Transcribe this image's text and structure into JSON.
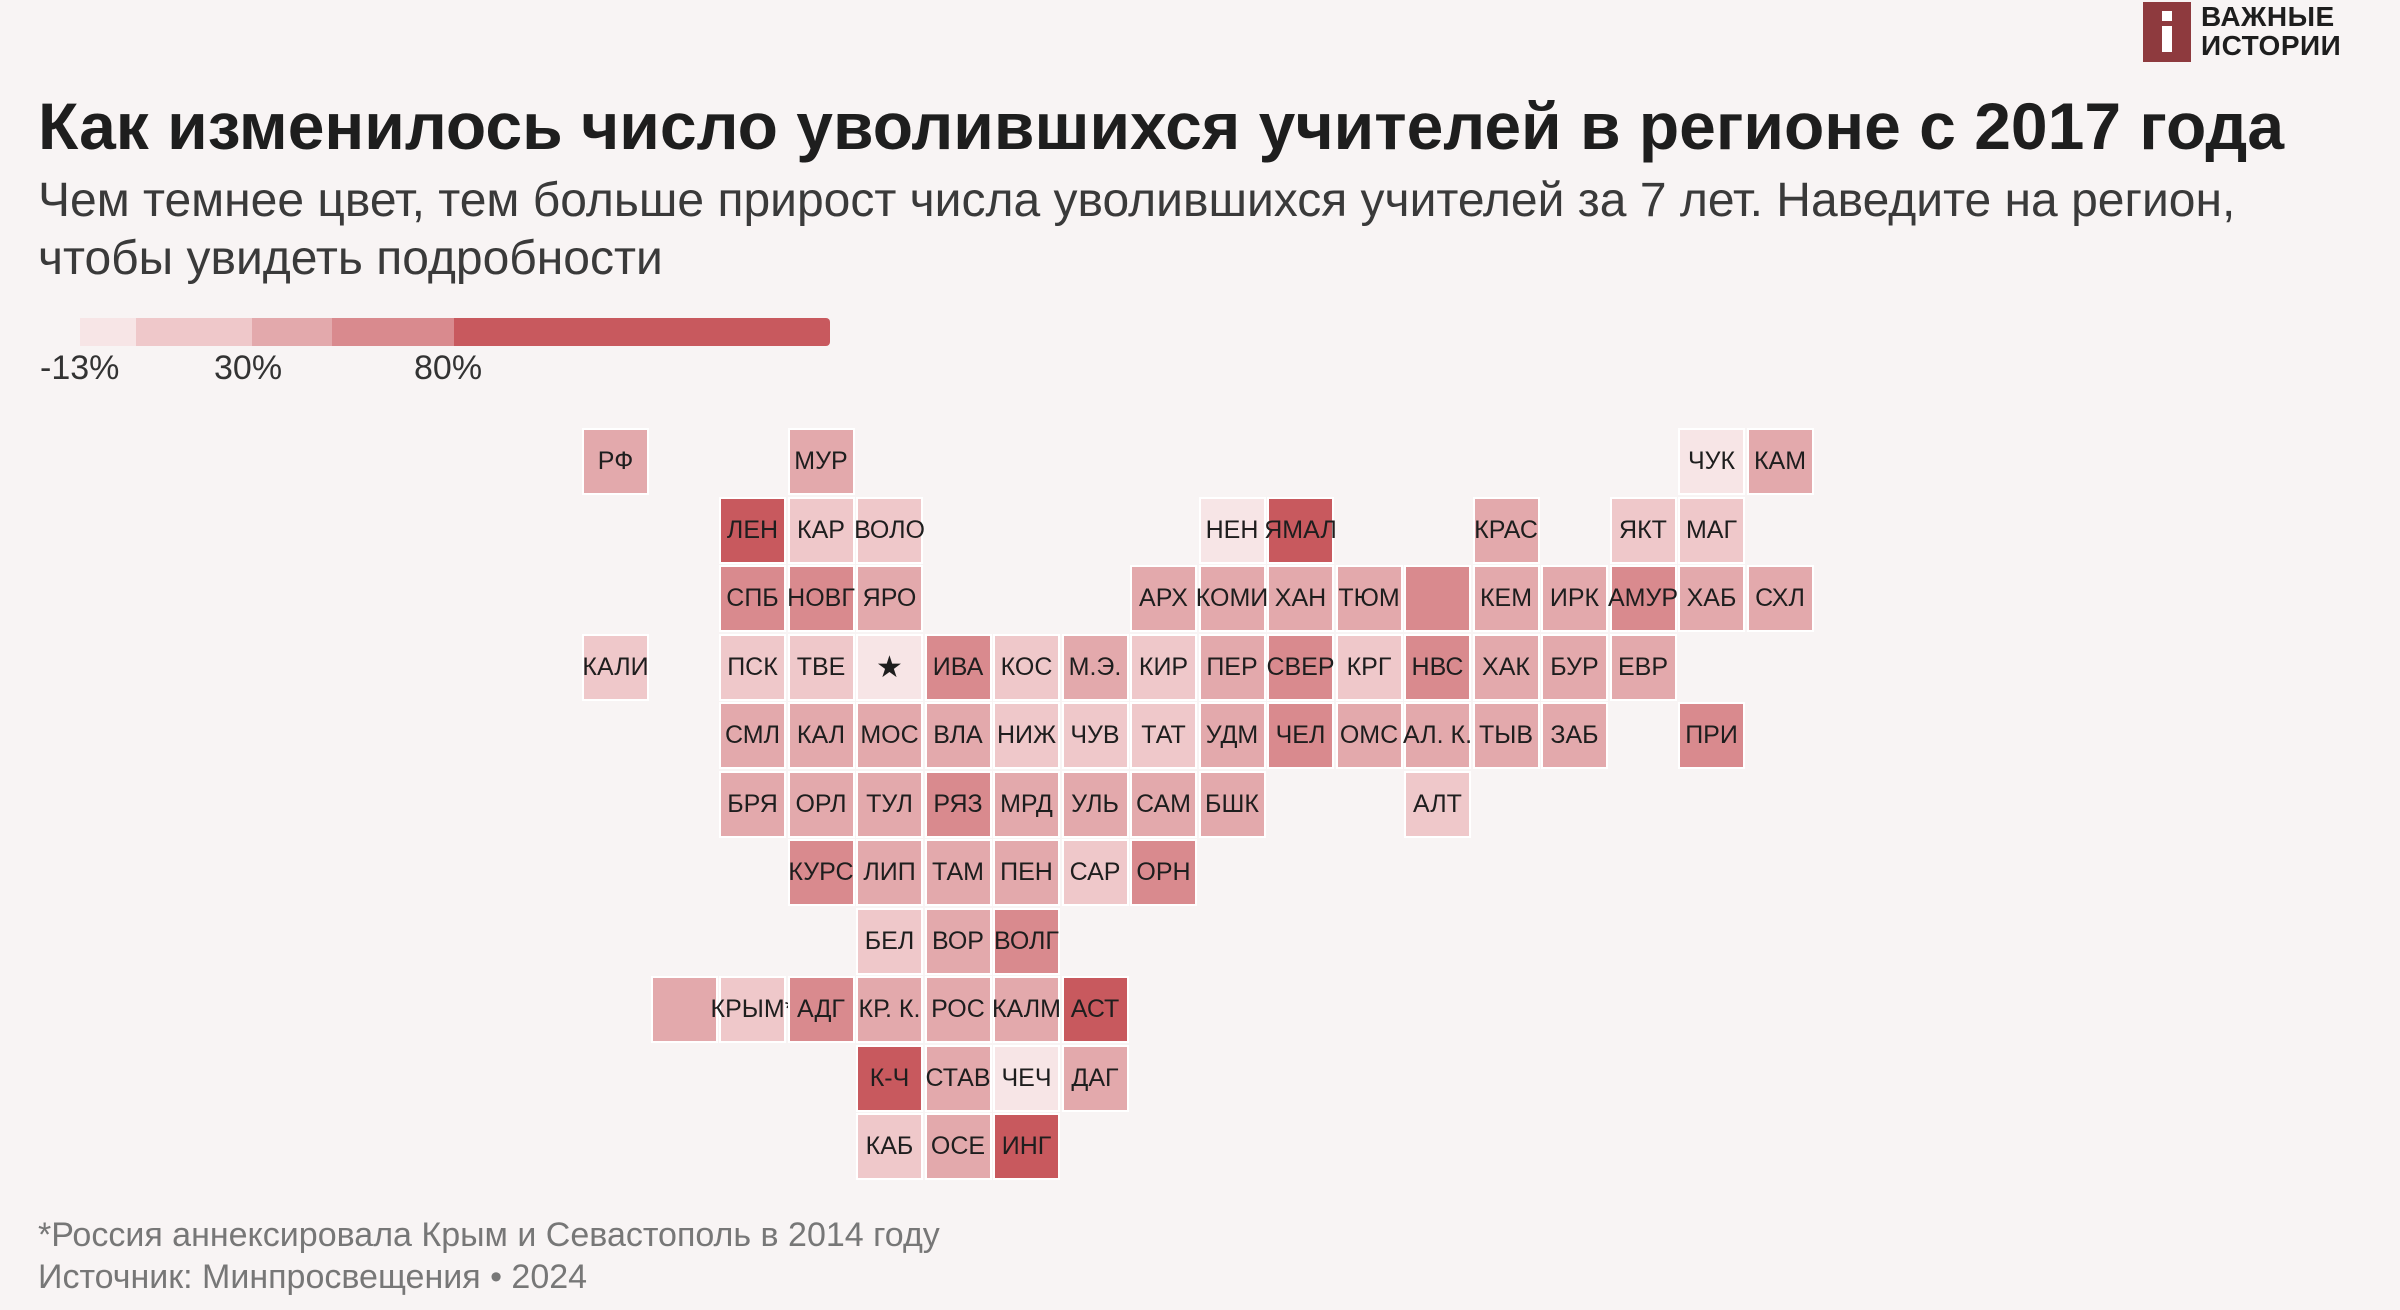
{
  "logo": {
    "line1": "ВАЖНЫЕ",
    "line2": "ИСТОРИИ",
    "color": "#8e3a3e"
  },
  "title": "Как изменилось число уволившихся учителей в регионе с 2017 года",
  "subtitle": "Чем темнее цвет, тем больше прирост числа уволившихся учителей за 7 лет. Наведите на регион, чтобы увидеть подробности",
  "legend": {
    "labels": [
      "-13%",
      "30%",
      "80%"
    ],
    "colors": [
      "#f7e5e6",
      "#efc8ca",
      "#e3a9ac",
      "#d98a8e",
      "#c8595e"
    ]
  },
  "chart_data": {
    "type": "heatmap",
    "description_of_scale": "darker = larger growth of teachers leaving",
    "levels": [
      {
        "level": 1,
        "color": "#f7e5e6"
      },
      {
        "level": 2,
        "color": "#efc8ca"
      },
      {
        "level": 3,
        "color": "#e3a9ac"
      },
      {
        "level": 4,
        "color": "#d98a8e"
      },
      {
        "level": 5,
        "color": "#c8595e"
      }
    ],
    "regions": [
      {
        "label": "РФ",
        "col": 0,
        "row": 0,
        "level": 3
      },
      {
        "label": "МУР",
        "col": 3,
        "row": 0,
        "level": 3
      },
      {
        "label": "ЧУК",
        "col": 16,
        "row": 0,
        "level": 1
      },
      {
        "label": "КАМ",
        "col": 17,
        "row": 0,
        "level": 3
      },
      {
        "label": "ЛЕН",
        "col": 2,
        "row": 1,
        "level": 5
      },
      {
        "label": "КАР",
        "col": 3,
        "row": 1,
        "level": 2
      },
      {
        "label": "ВОЛО",
        "col": 4,
        "row": 1,
        "level": 2
      },
      {
        "label": "НЕН",
        "col": 9,
        "row": 1,
        "level": 1
      },
      {
        "label": "ЯМАЛ",
        "col": 10,
        "row": 1,
        "level": 5
      },
      {
        "label": "КРАС",
        "col": 13,
        "row": 1,
        "level": 3
      },
      {
        "label": "ЯКТ",
        "col": 15,
        "row": 1,
        "level": 2
      },
      {
        "label": "МАГ",
        "col": 16,
        "row": 1,
        "level": 2
      },
      {
        "label": "СПБ",
        "col": 2,
        "row": 2,
        "level": 4
      },
      {
        "label": "НОВГ",
        "col": 3,
        "row": 2,
        "level": 4
      },
      {
        "label": "ЯРО",
        "col": 4,
        "row": 2,
        "level": 3
      },
      {
        "label": "АРХ",
        "col": 8,
        "row": 2,
        "level": 3
      },
      {
        "label": "КОМИ",
        "col": 9,
        "row": 2,
        "level": 3
      },
      {
        "label": "ХАН",
        "col": 10,
        "row": 2,
        "level": 3
      },
      {
        "label": "ТЮМ",
        "col": 11,
        "row": 2,
        "level": 3
      },
      {
        "label": "",
        "col": 12,
        "row": 2,
        "level": 4
      },
      {
        "label": "КЕМ",
        "col": 13,
        "row": 2,
        "level": 3
      },
      {
        "label": "ИРК",
        "col": 14,
        "row": 2,
        "level": 3
      },
      {
        "label": "АМУР",
        "col": 15,
        "row": 2,
        "level": 4
      },
      {
        "label": "ХАБ",
        "col": 16,
        "row": 2,
        "level": 3
      },
      {
        "label": "СХЛ",
        "col": 17,
        "row": 2,
        "level": 3
      },
      {
        "label": "КАЛИ",
        "col": 0,
        "row": 3,
        "level": 2
      },
      {
        "label": "ПСК",
        "col": 2,
        "row": 3,
        "level": 2
      },
      {
        "label": "ТВЕ",
        "col": 3,
        "row": 3,
        "level": 2
      },
      {
        "label": "★",
        "col": 4,
        "row": 3,
        "level": 1
      },
      {
        "label": "ИВА",
        "col": 5,
        "row": 3,
        "level": 4
      },
      {
        "label": "КОС",
        "col": 6,
        "row": 3,
        "level": 2
      },
      {
        "label": "М.Э.",
        "col": 7,
        "row": 3,
        "level": 3
      },
      {
        "label": "КИР",
        "col": 8,
        "row": 3,
        "level": 2
      },
      {
        "label": "ПЕР",
        "col": 9,
        "row": 3,
        "level": 3
      },
      {
        "label": "СВЕР",
        "col": 10,
        "row": 3,
        "level": 4
      },
      {
        "label": "КРГ",
        "col": 11,
        "row": 3,
        "level": 2
      },
      {
        "label": "НВС",
        "col": 12,
        "row": 3,
        "level": 4
      },
      {
        "label": "ХАК",
        "col": 13,
        "row": 3,
        "level": 3
      },
      {
        "label": "БУР",
        "col": 14,
        "row": 3,
        "level": 3
      },
      {
        "label": "ЕВР",
        "col": 15,
        "row": 3,
        "level": 3
      },
      {
        "label": "СМЛ",
        "col": 2,
        "row": 4,
        "level": 3
      },
      {
        "label": "КАЛ",
        "col": 3,
        "row": 4,
        "level": 3
      },
      {
        "label": "МОС",
        "col": 4,
        "row": 4,
        "level": 3
      },
      {
        "label": "ВЛА",
        "col": 5,
        "row": 4,
        "level": 3
      },
      {
        "label": "НИЖ",
        "col": 6,
        "row": 4,
        "level": 2
      },
      {
        "label": "ЧУВ",
        "col": 7,
        "row": 4,
        "level": 2
      },
      {
        "label": "ТАТ",
        "col": 8,
        "row": 4,
        "level": 2
      },
      {
        "label": "УДМ",
        "col": 9,
        "row": 4,
        "level": 3
      },
      {
        "label": "ЧЕЛ",
        "col": 10,
        "row": 4,
        "level": 4
      },
      {
        "label": "ОМС",
        "col": 11,
        "row": 4,
        "level": 3
      },
      {
        "label": "АЛ. К.",
        "col": 12,
        "row": 4,
        "level": 3
      },
      {
        "label": "ТЫВ",
        "col": 13,
        "row": 4,
        "level": 3
      },
      {
        "label": "ЗАБ",
        "col": 14,
        "row": 4,
        "level": 3
      },
      {
        "label": "ПРИ",
        "col": 16,
        "row": 4,
        "level": 4
      },
      {
        "label": "БРЯ",
        "col": 2,
        "row": 5,
        "level": 3
      },
      {
        "label": "ОРЛ",
        "col": 3,
        "row": 5,
        "level": 3
      },
      {
        "label": "ТУЛ",
        "col": 4,
        "row": 5,
        "level": 3
      },
      {
        "label": "РЯЗ",
        "col": 5,
        "row": 5,
        "level": 4
      },
      {
        "label": "МРД",
        "col": 6,
        "row": 5,
        "level": 3
      },
      {
        "label": "УЛЬ",
        "col": 7,
        "row": 5,
        "level": 3
      },
      {
        "label": "САМ",
        "col": 8,
        "row": 5,
        "level": 3
      },
      {
        "label": "БШК",
        "col": 9,
        "row": 5,
        "level": 3
      },
      {
        "label": "АЛТ",
        "col": 12,
        "row": 5,
        "level": 2
      },
      {
        "label": "КУРС",
        "col": 3,
        "row": 6,
        "level": 4
      },
      {
        "label": "ЛИП",
        "col": 4,
        "row": 6,
        "level": 3
      },
      {
        "label": "ТАМ",
        "col": 5,
        "row": 6,
        "level": 3
      },
      {
        "label": "ПЕН",
        "col": 6,
        "row": 6,
        "level": 3
      },
      {
        "label": "САР",
        "col": 7,
        "row": 6,
        "level": 2
      },
      {
        "label": "ОРН",
        "col": 8,
        "row": 6,
        "level": 4
      },
      {
        "label": "БЕЛ",
        "col": 4,
        "row": 7,
        "level": 2
      },
      {
        "label": "ВОР",
        "col": 5,
        "row": 7,
        "level": 3
      },
      {
        "label": "ВОЛГ",
        "col": 6,
        "row": 7,
        "level": 4
      },
      {
        "label": "",
        "col": 1,
        "row": 8,
        "level": 3
      },
      {
        "label": "КРЫМ*",
        "col": 2,
        "row": 8,
        "level": 2
      },
      {
        "label": "АДГ",
        "col": 3,
        "row": 8,
        "level": 4
      },
      {
        "label": "КР. К.",
        "col": 4,
        "row": 8,
        "level": 3
      },
      {
        "label": "РОС",
        "col": 5,
        "row": 8,
        "level": 3
      },
      {
        "label": "КАЛМ",
        "col": 6,
        "row": 8,
        "level": 3
      },
      {
        "label": "АСТ",
        "col": 7,
        "row": 8,
        "level": 5
      },
      {
        "label": "К-Ч",
        "col": 4,
        "row": 9,
        "level": 5
      },
      {
        "label": "СТАВ",
        "col": 5,
        "row": 9,
        "level": 3
      },
      {
        "label": "ЧЕЧ",
        "col": 6,
        "row": 9,
        "level": 1
      },
      {
        "label": "ДАГ",
        "col": 7,
        "row": 9,
        "level": 3
      },
      {
        "label": "КАБ",
        "col": 4,
        "row": 10,
        "level": 2
      },
      {
        "label": "ОСЕ",
        "col": 5,
        "row": 10,
        "level": 3
      },
      {
        "label": "ИНГ",
        "col": 6,
        "row": 10,
        "level": 5
      }
    ]
  },
  "footnote": "*Россия аннексировала Крым и Севастополь в 2014 году",
  "source": "Источник: Минпросвещения • 2024"
}
